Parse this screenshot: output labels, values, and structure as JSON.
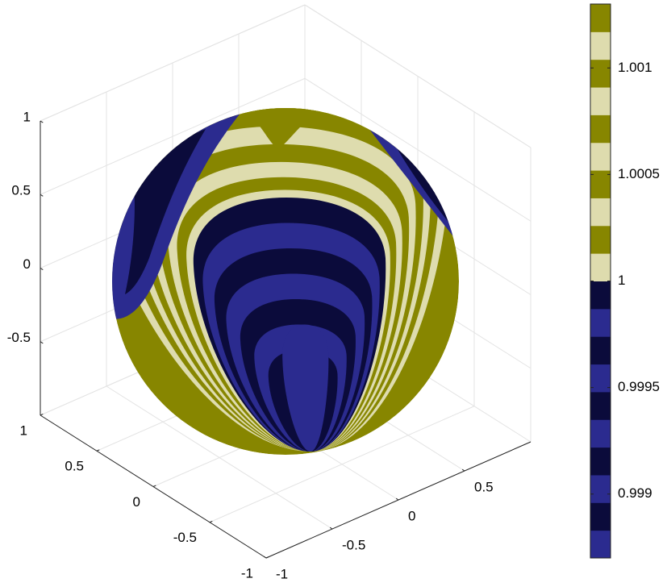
{
  "chart_data": {
    "type": "surface3d",
    "xlim": [
      -1,
      1
    ],
    "ylim": [
      -1,
      1
    ],
    "zlim": [
      -1,
      1
    ],
    "xticks": [
      -1,
      -0.5,
      0,
      0.5,
      1
    ],
    "yticks": [
      -1,
      -0.5,
      0,
      0.5
    ],
    "zticks": [
      -0.5,
      0,
      0.5,
      1
    ],
    "grid": true,
    "colorbar": {
      "clim": [
        0.9987,
        1.0013
      ],
      "ticks": [
        0.999,
        0.9995,
        1,
        1.0005,
        1.001
      ],
      "colors": [
        "#2b2b8f",
        "#0b0b3b",
        "#2b2b8f",
        "#0b0b3b",
        "#2b2b8f",
        "#0b0b3b",
        "#2b2b8f",
        "#0b0b3b",
        "#2b2b8f",
        "#0b0b3b",
        "#dedcae",
        "#878600",
        "#dedcae",
        "#878600",
        "#dedcae",
        "#878600",
        "#dedcae",
        "#878600",
        "#dedcae",
        "#878600"
      ]
    }
  }
}
